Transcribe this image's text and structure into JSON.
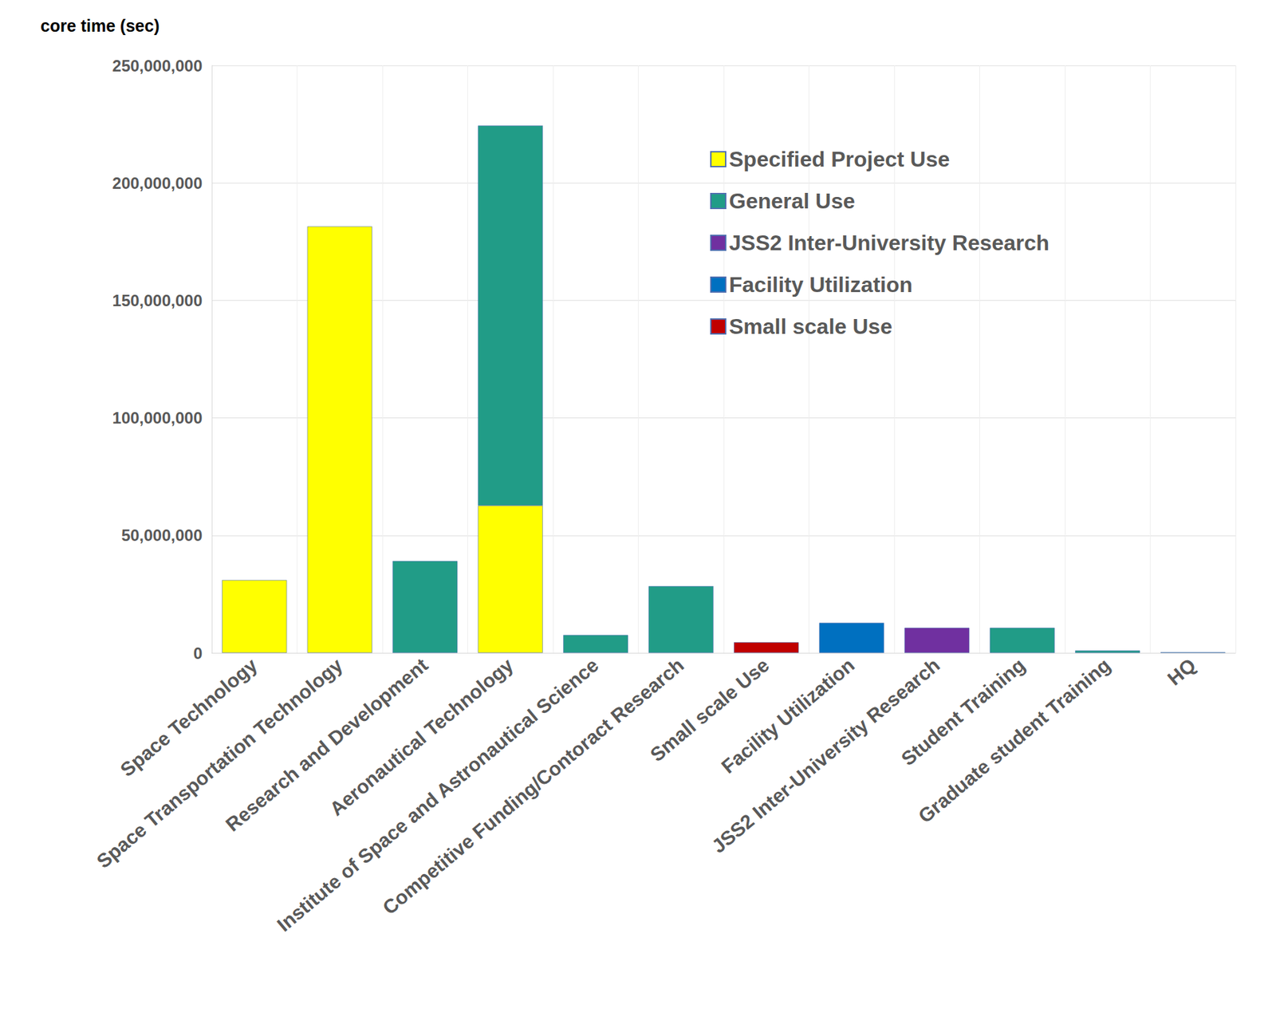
{
  "chart_data": {
    "type": "bar",
    "stacked": true,
    "grid": true,
    "legend": "upper right",
    "y_label": "core time (sec)",
    "categories": [
      "Space Technology",
      "Space Transportation Technology",
      "Research and Development",
      "Aeronautical Technology",
      "Institute of Space and Astronautical Science",
      "Competitive Funding/Contoract Research",
      "Small scale Use",
      "Facility Utilization",
      "JSS2 Inter-University Research",
      "Student Training",
      "Graduate student Training",
      "HQ"
    ],
    "series": [
      {
        "name": "Specified Project Use",
        "color": "#ffff00",
        "values": [
          31000000,
          181500000,
          null,
          62700000,
          null,
          null,
          null,
          null,
          null,
          null,
          null,
          null
        ]
      },
      {
        "name": "General Use",
        "color": "#219c87",
        "values": [
          null,
          null,
          39100000,
          161700000,
          7600000,
          28400000,
          null,
          null,
          null,
          10700000,
          1000000,
          300000
        ]
      },
      {
        "name": "JSS2 Inter-University Research",
        "color": "#7030a0",
        "values": [
          null,
          null,
          null,
          null,
          null,
          null,
          null,
          null,
          10700000,
          null,
          null,
          null
        ]
      },
      {
        "name": "Facility Utilization",
        "color": "#0070c0",
        "values": [
          null,
          null,
          null,
          null,
          null,
          null,
          null,
          12800000,
          null,
          null,
          null,
          null
        ]
      },
      {
        "name": "Small scale Use",
        "color": "#c00000",
        "values": [
          null,
          null,
          null,
          null,
          null,
          null,
          4500000,
          null,
          null,
          null,
          null,
          null
        ]
      }
    ],
    "ylim": [
      0,
      250000000
    ],
    "yticks": [
      0,
      {
        "value": 50000000,
        "label": "50,000,000"
      },
      {
        "value": 100000000,
        "label": "100,000,000"
      },
      {
        "value": 150000000,
        "label": "150,000,000"
      },
      {
        "value": 200000000,
        "label": "200,000,000"
      },
      {
        "value": 250000000,
        "label": "250,000,000"
      }
    ]
  }
}
